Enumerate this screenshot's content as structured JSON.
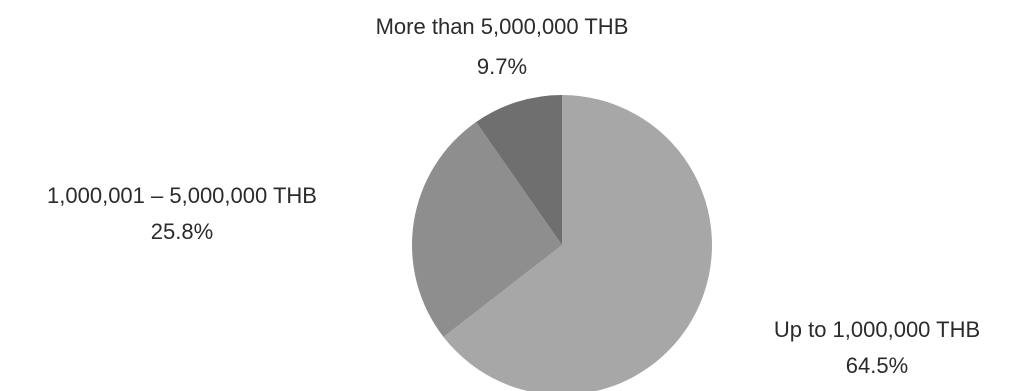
{
  "chart_data": {
    "type": "pie",
    "slices": [
      {
        "label": "Up to 1,000,000 THB",
        "value": 64.5,
        "display_value": "64.5%",
        "color": "#a7a7a7"
      },
      {
        "label": "1,000,001 – 5,000,000 THB",
        "value": 25.8,
        "display_value": "25.8%",
        "color": "#8e8e8e"
      },
      {
        "label": "More than 5,000,000 THB",
        "value": 9.7,
        "display_value": "9.7%",
        "color": "#6f6f6f"
      }
    ],
    "start_angle": "12 o'clock",
    "direction": "clockwise",
    "legend": "none"
  }
}
